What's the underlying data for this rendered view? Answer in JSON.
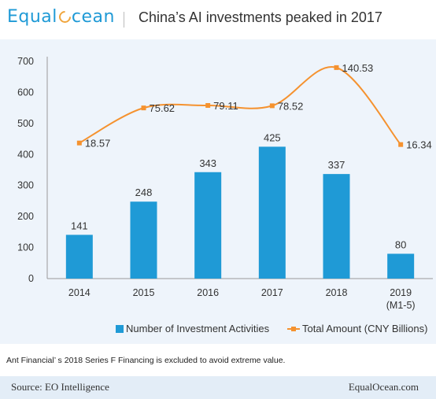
{
  "header": {
    "logo_left": "Equal",
    "logo_right": "cean",
    "title": "China’s AI investments peaked in 2017"
  },
  "note": "Ant Financial’ s 2018 Series F Financing is excluded to avoid extreme value.",
  "footer": {
    "source": "Source: EO Intelligence",
    "site": "EqualOcean.com"
  },
  "chart_data": {
    "type": "bar",
    "categories": [
      "2014",
      "2015",
      "2016",
      "2017",
      "2018",
      "2019\n(M1-5)"
    ],
    "ylim": [
      0,
      700
    ],
    "yticks": [
      0,
      100,
      200,
      300,
      400,
      500,
      600,
      700
    ],
    "grid": false,
    "legend_position": "bottom-right",
    "series": [
      {
        "name": "Number of Investment Activities",
        "type": "bar",
        "color": "#1f9ad6",
        "values": [
          141,
          248,
          343,
          425,
          337,
          80
        ],
        "labels": [
          "141",
          "248",
          "343",
          "425",
          "337",
          "80"
        ]
      },
      {
        "name": "Total Amount (CNY Billions)",
        "type": "line",
        "color": "#f5922f",
        "values": [
          18.57,
          75.62,
          79.11,
          78.52,
          140.53,
          16.34
        ],
        "plot_values": [
          437,
          550,
          558,
          557,
          680,
          432
        ],
        "labels": [
          "18.57",
          "75.62",
          "79.11",
          "78.52",
          "140.53",
          "16.34"
        ]
      }
    ]
  }
}
